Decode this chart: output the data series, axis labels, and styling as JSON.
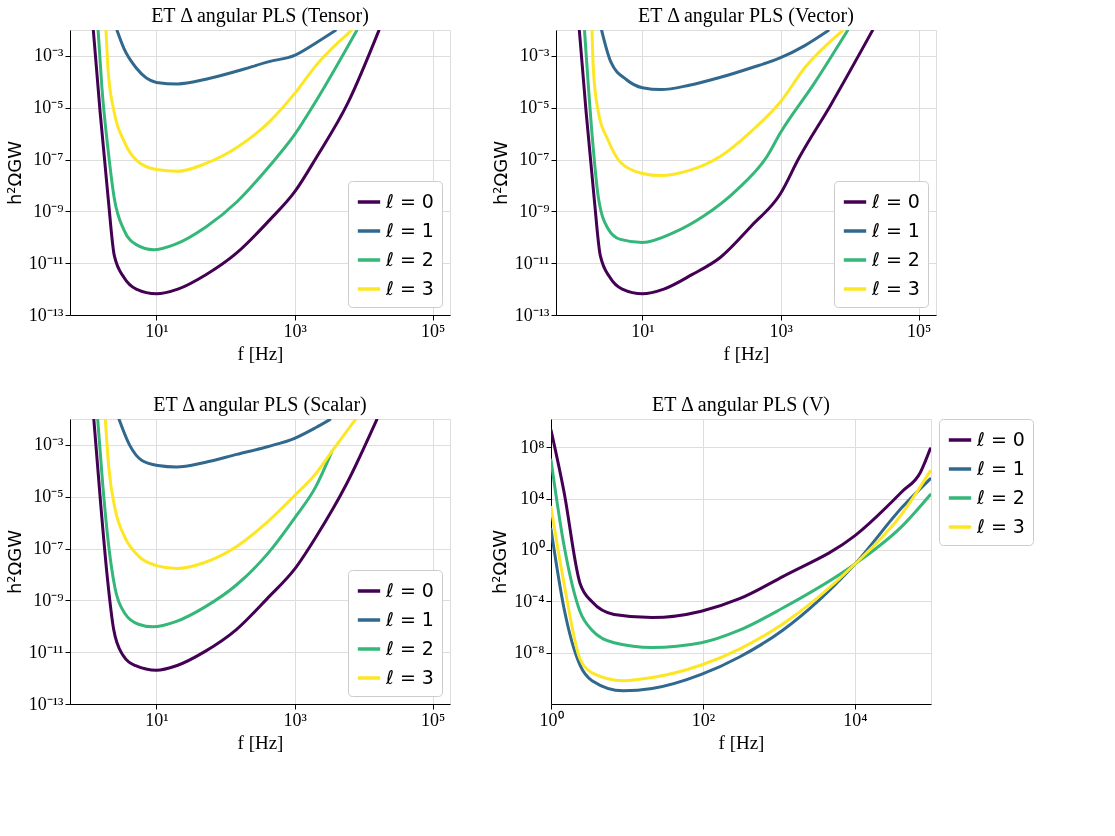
{
  "chart_data": [
    {
      "type": "line",
      "title": "ET  Δ angular PLS (Tensor)",
      "xlabel": "f [Hz]",
      "ylabel": "h²ΩGW",
      "log": "xy",
      "grid": true,
      "legend": "bottom right",
      "xlim": [
        0.56,
        178000
      ],
      "ylim": [
        1e-13,
        0.01
      ],
      "xticks": [
        {
          "value": 10,
          "label": "10¹"
        },
        {
          "value": 1000,
          "label": "10³"
        },
        {
          "value": 100000,
          "label": "10⁵"
        }
      ],
      "yticks": [
        {
          "value": 1e-13,
          "label": "10⁻¹³"
        },
        {
          "value": 1e-11,
          "label": "10⁻¹¹"
        },
        {
          "value": 1e-09,
          "label": "10⁻⁹"
        },
        {
          "value": 1e-07,
          "label": "10⁻⁷"
        },
        {
          "value": 1e-05,
          "label": "10⁻⁵"
        },
        {
          "value": 0.001,
          "label": "10⁻³"
        }
      ],
      "series": [
        {
          "name": "ℓ = 0",
          "color": "#440154",
          "x": [
            1.22,
            1.53,
            2.0,
            2.45,
            3.39,
            5.1,
            10,
            20.4,
            52,
            148,
            427,
            1000,
            2090,
            5890,
            16600
          ],
          "values": [
            0.0095,
            6.6e-06,
            3.2e-09,
            2e-11,
            2.8e-12,
            1e-12,
            6.6e-13,
            1e-12,
            3.6e-12,
            2.6e-11,
            4.4e-10,
            5.6e-09,
            1.26e-07,
            1.5e-05,
            0.0095
          ]
        },
        {
          "name": "ℓ = 1",
          "color": "#31688e",
          "x": [
            2.69,
            3.39,
            5.1,
            10,
            20.4,
            52,
            148,
            427,
            1000,
            2090,
            3890
          ],
          "values": [
            0.0095,
            0.0019,
            0.00034,
            9.5e-05,
            8.3e-05,
            0.000126,
            0.00026,
            0.0006,
            0.00105,
            0.0033,
            0.0095
          ]
        },
        {
          "name": "ℓ = 2",
          "color": "#35b779",
          "x": [
            1.43,
            1.62,
            2.0,
            2.45,
            3.39,
            5.1,
            9.1,
            18.2,
            52,
            148,
            427,
            1000,
            2090,
            7940
          ],
          "values": [
            0.0095,
            6.3e-05,
            2.2e-07,
            3.2e-09,
            1.9e-10,
            5.2e-11,
            3.3e-11,
            5.2e-11,
            2.5e-10,
            2.4e-09,
            5.4e-08,
            9.1e-07,
            2e-05,
            0.0095
          ]
        },
        {
          "name": "ℓ = 3",
          "color": "#fde725",
          "x": [
            1.86,
            2.0,
            2.45,
            3.39,
            5.1,
            10,
            20.4,
            52,
            148,
            427,
            1000,
            2090,
            6610
          ],
          "values": [
            0.0095,
            0.00026,
            6.6e-06,
            5.1e-07,
            9.5e-08,
            4.1e-08,
            3.5e-08,
            7.1e-08,
            3e-07,
            2.8e-06,
            3.5e-05,
            0.00046,
            0.0095
          ]
        }
      ]
    },
    {
      "type": "line",
      "title": "ET  Δ angular PLS (Vector)",
      "xlabel": "f [Hz]",
      "ylabel": "h²ΩGW",
      "log": "xy",
      "grid": true,
      "legend": "bottom right",
      "xlim": [
        0.56,
        178000
      ],
      "ylim": [
        1e-13,
        0.01
      ],
      "xticks": [
        {
          "value": 10,
          "label": "10¹"
        },
        {
          "value": 1000,
          "label": "10³"
        },
        {
          "value": 100000,
          "label": "10⁵"
        }
      ],
      "yticks": [
        {
          "value": 1e-13,
          "label": "10⁻¹³"
        },
        {
          "value": 1e-11,
          "label": "10⁻¹¹"
        },
        {
          "value": 1e-09,
          "label": "10⁻⁹"
        },
        {
          "value": 1e-07,
          "label": "10⁻⁷"
        },
        {
          "value": 1e-05,
          "label": "10⁻⁵"
        },
        {
          "value": 0.001,
          "label": "10⁻³"
        }
      ],
      "series": [
        {
          "name": "ℓ = 0",
          "color": "#440154",
          "x": [
            1.22,
            1.53,
            2.0,
            2.45,
            3.39,
            5.1,
            10,
            20.4,
            52,
            135,
            380,
            1000,
            1820,
            5250,
            21400
          ],
          "values": [
            0.0095,
            6.6e-06,
            3.2e-09,
            2e-11,
            2.8e-12,
            1e-12,
            6.6e-13,
            1e-12,
            3.6e-12,
            1.7e-11,
            2.8e-10,
            4.9e-09,
            1.07e-07,
            1.2e-05,
            0.0095
          ]
        },
        {
          "name": "ℓ = 1",
          "color": "#31688e",
          "x": [
            2.57,
            3.47,
            5.89,
            10,
            18.6,
            47.6,
            135,
            380,
            1000,
            2240,
            4900
          ],
          "values": [
            0.0095,
            0.0006,
            0.00012,
            5.9e-05,
            5e-05,
            7.4e-05,
            0.00015,
            0.00035,
            0.00085,
            0.0025,
            0.0095
          ]
        },
        {
          "name": "ℓ = 2",
          "color": "#35b779",
          "x": [
            1.45,
            1.86,
            2.29,
            3.16,
            4.79,
            10,
            28.2,
            79,
            229,
            646,
            1000,
            3090,
            9330
          ],
          "values": [
            0.0095,
            1e-06,
            3.7e-09,
            2.2e-10,
            8.3e-11,
            6.3e-11,
            1.5e-10,
            6.9e-10,
            6.5e-09,
            1.4e-07,
            1.1e-06,
            8.9e-05,
            0.0095
          ]
        },
        {
          "name": "ℓ = 3",
          "color": "#fde725",
          "x": [
            1.86,
            1.95,
            2.29,
            3.16,
            4.79,
            10,
            18.6,
            47.6,
            135,
            380,
            1000,
            2240,
            7940
          ],
          "values": [
            0.0095,
            0.00028,
            7.2e-06,
            5.8e-07,
            7.9e-08,
            2.9e-08,
            2.4e-08,
            3.8e-08,
            1.35e-07,
            1.26e-06,
            1.7e-05,
            0.00035,
            0.0095
          ]
        }
      ]
    },
    {
      "type": "line",
      "title": "ET  Δ angular PLS (Scalar)",
      "xlabel": "f [Hz]",
      "ylabel": "h²ΩGW",
      "log": "xy",
      "grid": true,
      "legend": "bottom right",
      "xlim": [
        0.56,
        178000
      ],
      "ylim": [
        1e-13,
        0.01
      ],
      "xticks": [
        {
          "value": 10,
          "label": "10¹"
        },
        {
          "value": 1000,
          "label": "10³"
        },
        {
          "value": 100000,
          "label": "10⁵"
        }
      ],
      "yticks": [
        {
          "value": 1e-13,
          "label": "10⁻¹³"
        },
        {
          "value": 1e-11,
          "label": "10⁻¹¹"
        },
        {
          "value": 1e-09,
          "label": "10⁻⁹"
        },
        {
          "value": 1e-07,
          "label": "10⁻⁷"
        },
        {
          "value": 1e-05,
          "label": "10⁻⁵"
        },
        {
          "value": 0.001,
          "label": "10⁻³"
        }
      ],
      "series": [
        {
          "name": "ℓ = 0",
          "color": "#440154",
          "x": [
            1.24,
            1.55,
            1.95,
            2.4,
            3.24,
            5.0,
            10,
            19.5,
            50,
            145,
            417,
            1000,
            2040,
            5750,
            15500
          ],
          "values": [
            0.0095,
            6.2e-06,
            7.1e-09,
            7.6e-11,
            7.9e-12,
            3e-12,
            2e-12,
            3e-12,
            1.05e-11,
            7.6e-11,
            1.3e-09,
            1.6e-08,
            2.8e-07,
            3.4e-05,
            0.0095
          ]
        },
        {
          "name": "ℓ = 1",
          "color": "#31688e",
          "x": [
            2.88,
            4.07,
            6.17,
            10.5,
            19.5,
            50,
            145,
            417,
            1000,
            2040,
            3240
          ],
          "values": [
            0.0095,
            0.001,
            0.00025,
            0.00016,
            0.00014,
            0.00021,
            0.00043,
            0.00087,
            0.0018,
            0.0047,
            0.0095
          ]
        },
        {
          "name": "ℓ = 2",
          "color": "#35b779",
          "x": [
            1.41,
            1.66,
            2.04,
            2.51,
            3.47,
            5.5,
            8.9,
            19.5,
            50,
            145,
            417,
            1000,
            2040,
            3470
          ],
          "values": [
            0.0095,
            3.4e-05,
            1.2e-07,
            3e-09,
            3.2e-10,
            1.2e-10,
            9.5e-11,
            1.55e-10,
            5.5e-10,
            4e-09,
            6.8e-08,
            1.5e-06,
            2.5e-05,
            0.00056
          ]
        },
        {
          "name": "ℓ = 3",
          "color": "#fde725",
          "x": [
            1.82,
            2.04,
            2.51,
            3.47,
            5.5,
            10,
            19.5,
            50,
            145,
            417,
            1000,
            2040,
            3470,
            7590
          ],
          "values": [
            0.0095,
            0.00014,
            3.5e-06,
            2.8e-07,
            5.1e-08,
            2.2e-08,
            1.7e-08,
            2.9e-08,
            1.2e-07,
            1.15e-06,
            1.1e-05,
            7.9e-05,
            0.00056,
            0.0095
          ]
        }
      ]
    },
    {
      "type": "line",
      "title": "ET  Δ angular PLS (V)",
      "xlabel": "f [Hz]",
      "ylabel": "h²ΩGW",
      "log": "xy",
      "grid": true,
      "legend": "right",
      "xlim": [
        1,
        100000
      ],
      "ylim": [
        1e-12,
        16000000000.0
      ],
      "xticks": [
        {
          "value": 1,
          "label": "10⁰"
        },
        {
          "value": 100,
          "label": "10²"
        },
        {
          "value": 10000,
          "label": "10⁴"
        }
      ],
      "yticks": [
        {
          "value": 1e-08,
          "label": "10⁻⁸"
        },
        {
          "value": 0.0001,
          "label": "10⁻⁴"
        },
        {
          "value": 1,
          "label": "10⁰"
        },
        {
          "value": 10000,
          "label": "10⁴"
        },
        {
          "value": 100000000,
          "label": "10⁸"
        }
      ],
      "series": [
        {
          "name": "ℓ = 0",
          "color": "#440154",
          "x": [
            1,
            1.48,
            2.4,
            3.47,
            6.76,
            21.4,
            95,
            302,
            1120,
            10000,
            41700,
            72400,
            97700
          ],
          "values": [
            2200000000.0,
            36000.0,
            0.0027,
            9.1e-05,
            9.5e-06,
            5.4e-06,
            1.7e-05,
            0.00016,
            0.0085,
            13,
            36000.0,
            1100000.0,
            76000000.0
          ]
        },
        {
          "name": "ℓ = 1",
          "color": "#31688e",
          "x": [
            1,
            1.48,
            2.4,
            3.47,
            8.9,
            21.4,
            95,
            302,
            1120,
            10000,
            41700,
            97700
          ],
          "values": [
            41,
            3e-05,
            1.1e-09,
            6.6e-11,
            1.07e-11,
            1.6e-11,
            2e-10,
            4.6e-09,
            5.6e-07,
            0.081,
            2100.0,
            350000.0
          ]
        },
        {
          "name": "ℓ = 2",
          "color": "#35b779",
          "x": [
            1,
            1.48,
            2.4,
            3.47,
            6.76,
            21.4,
            95,
            302,
            1120,
            10000,
            41700,
            97700
          ],
          "values": [
            10000000.0,
            2.4,
            1.7e-05,
            5.6e-07,
            5.9e-08,
            2.5e-08,
            5.9e-08,
            5.6e-07,
            3e-05,
            0.081,
            72,
            20000.0
          ]
        },
        {
          "name": "ℓ = 3",
          "color": "#fde725",
          "x": [
            1,
            1.48,
            2.4,
            3.47,
            8.9,
            21.4,
            95,
            302,
            1120,
            10000,
            41700,
            97700
          ],
          "values": [
            2100.0,
            0.0027,
            3.5e-09,
            2.7e-10,
            6.6e-11,
            1.15e-10,
            1.1e-09,
            1.9e-08,
            1.7e-06,
            0.081,
            690,
            1400000.0
          ]
        }
      ]
    }
  ]
}
